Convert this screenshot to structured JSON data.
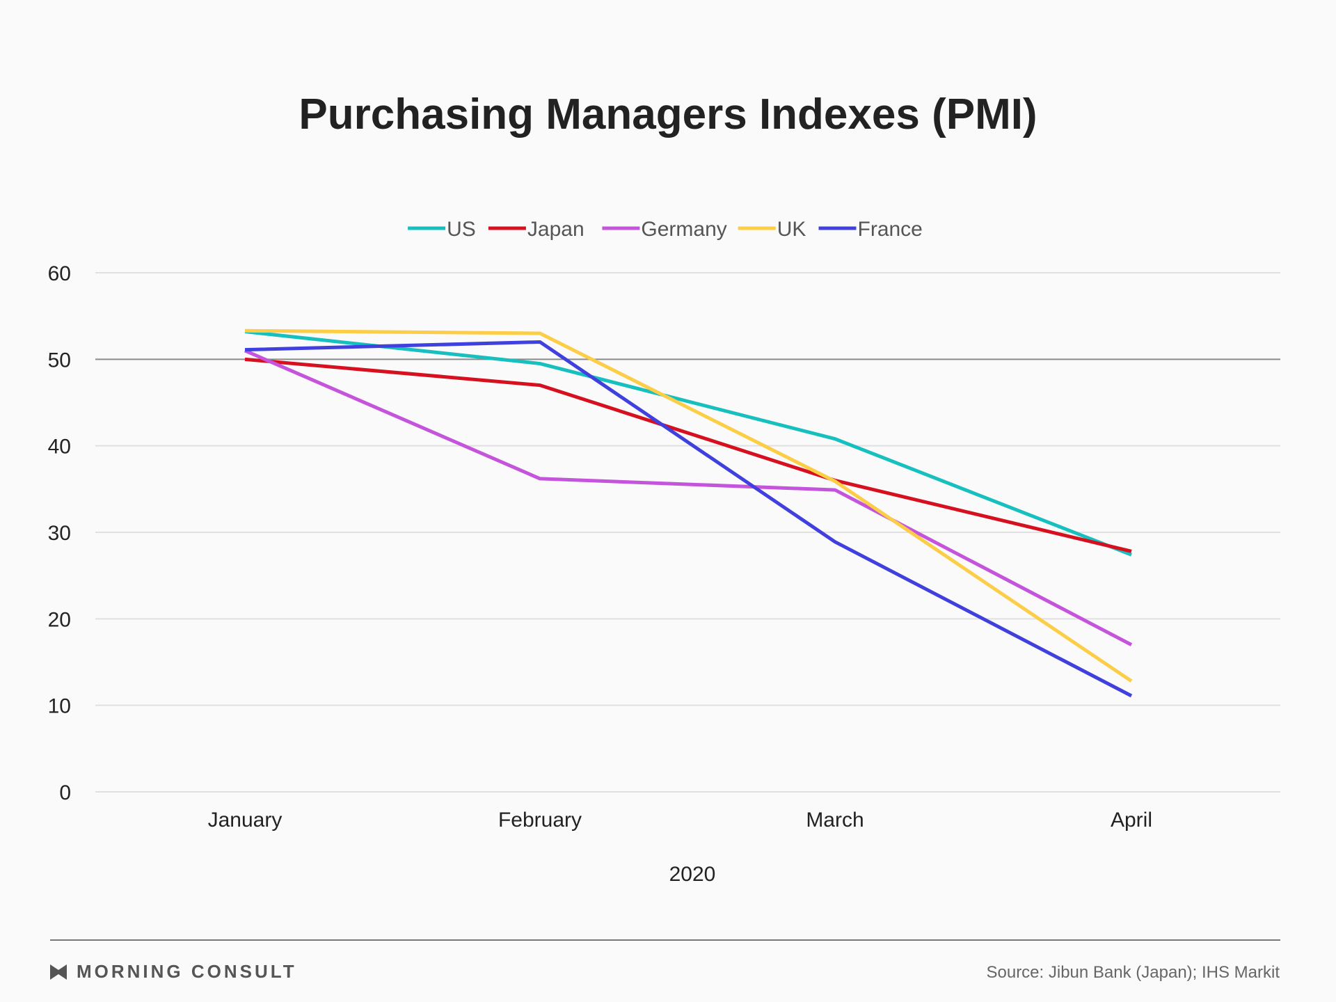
{
  "chart_data": {
    "type": "line",
    "title": "Purchasing Managers Indexes (PMI)",
    "xlabel": "2020",
    "ylabel": "",
    "categories": [
      "January",
      "February",
      "March",
      "April"
    ],
    "ylim": [
      0,
      60
    ],
    "yticks": [
      0,
      10,
      20,
      30,
      40,
      50,
      60
    ],
    "reference_line": 50,
    "grid": true,
    "legend_position": "top-center",
    "series": [
      {
        "name": "US",
        "color": "#17bfbf",
        "values": [
          53.2,
          49.5,
          40.8,
          27.4
        ]
      },
      {
        "name": "Japan",
        "color": "#d7101f",
        "values": [
          50.0,
          47.0,
          36.0,
          27.8
        ]
      },
      {
        "name": "Germany",
        "color": "#c554dc",
        "values": [
          51.0,
          36.2,
          34.9,
          17.0
        ]
      },
      {
        "name": "UK",
        "color": "#fccd46",
        "values": [
          53.3,
          53.0,
          35.9,
          12.8
        ]
      },
      {
        "name": "France",
        "color": "#4040de",
        "values": [
          51.1,
          52.0,
          28.9,
          11.1
        ]
      }
    ]
  },
  "footer": {
    "brand": "MORNING CONSULT",
    "brand_icon": "morning-consult-logo-icon",
    "source": "Source: Jibun Bank (Japan); IHS Markit"
  }
}
